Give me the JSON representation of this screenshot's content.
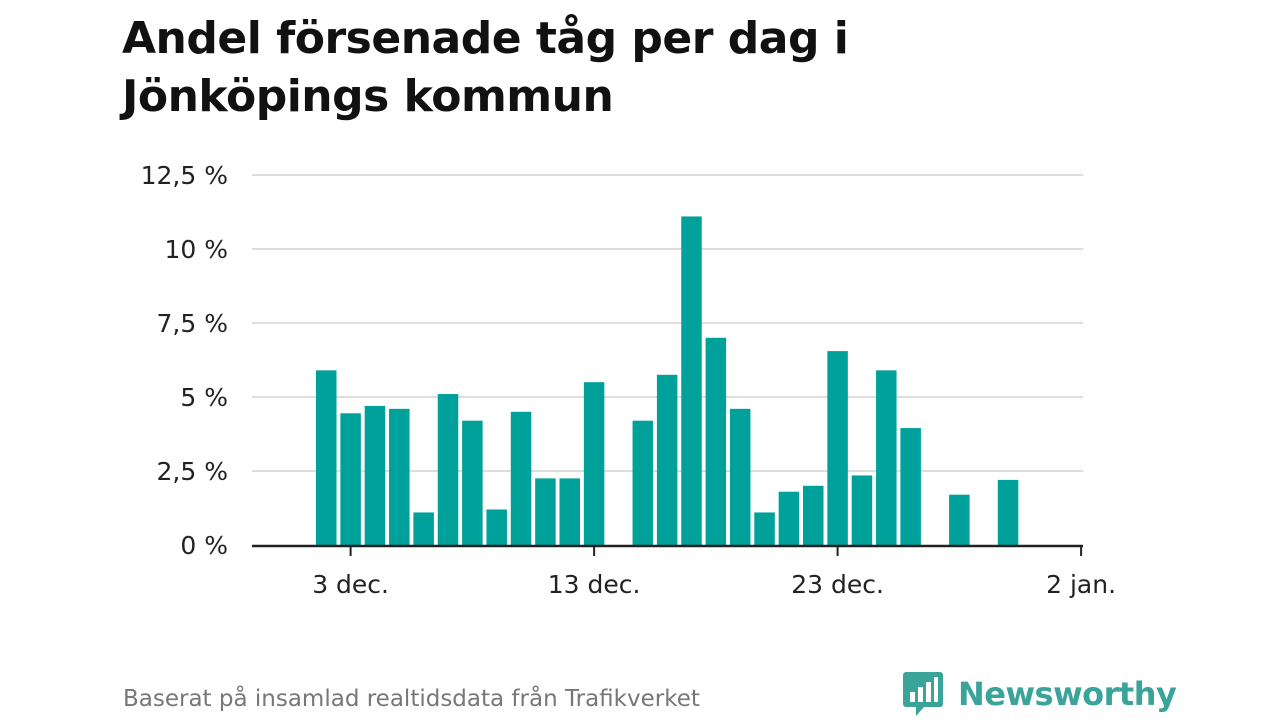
{
  "title": "Andel försenade tåg per dag i Jönköpings kommun",
  "source": "Baserat på insamlad realtidsdata från Trafikverket",
  "brand": {
    "name": "Newsworthy",
    "logo": "newsworthy-logo-icon"
  },
  "colors": {
    "bar": "#00a19a",
    "grid": "#dddddd",
    "axis": "#222222",
    "brand": "#3aa39a"
  },
  "chart_data": {
    "type": "bar",
    "title": "Andel försenade tåg per dag i Jönköpings kommun",
    "xlabel": "",
    "ylabel": "",
    "x": [
      "2024-12-02",
      "2024-12-03",
      "2024-12-04",
      "2024-12-05",
      "2024-12-06",
      "2024-12-07",
      "2024-12-08",
      "2024-12-09",
      "2024-12-10",
      "2024-12-11",
      "2024-12-12",
      "2024-12-13",
      "2024-12-14",
      "2024-12-15",
      "2024-12-16",
      "2024-12-17",
      "2024-12-18",
      "2024-12-19",
      "2024-12-20",
      "2024-12-21",
      "2024-12-22",
      "2024-12-23",
      "2024-12-24",
      "2024-12-25",
      "2024-12-26",
      "2024-12-27",
      "2024-12-28",
      "2024-12-29",
      "2024-12-30",
      "2024-12-31"
    ],
    "values": [
      5.9,
      4.45,
      4.7,
      4.6,
      1.1,
      5.1,
      4.2,
      1.2,
      4.5,
      2.25,
      2.25,
      5.5,
      null,
      4.2,
      5.75,
      11.1,
      7.0,
      4.6,
      1.1,
      1.8,
      2.0,
      6.55,
      2.35,
      5.9,
      3.95,
      null,
      1.7,
      null,
      2.2,
      null
    ],
    "ylim": [
      0,
      12.5
    ],
    "yticks": [
      "0 %",
      "2,5 %",
      "5 %",
      "7,5 %",
      "10 %",
      "12,5 %"
    ],
    "xticks": [
      "3 dec.",
      "13 dec.",
      "23 dec.",
      "2 jan."
    ],
    "grid": true
  }
}
